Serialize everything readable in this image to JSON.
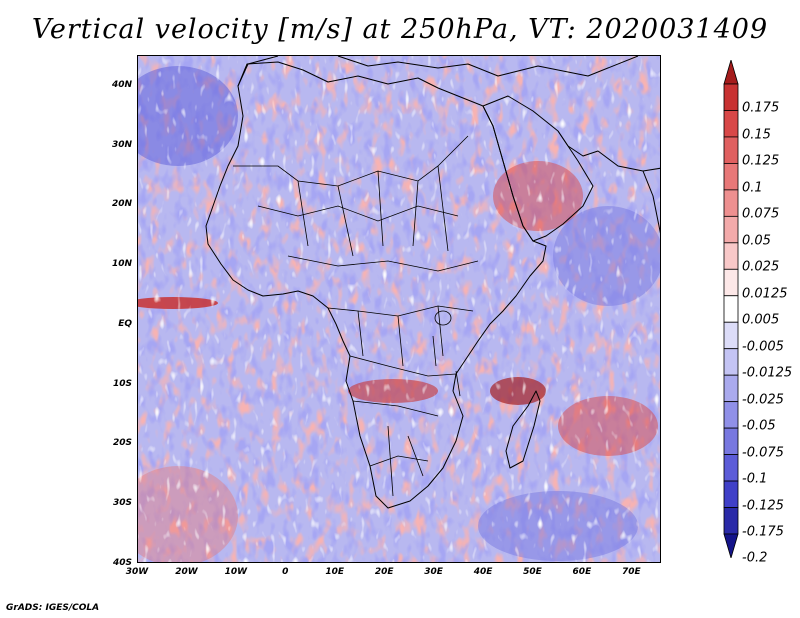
{
  "title": "Vertical velocity [m/s] at 250hPa, VT: 2020031409",
  "footer": "GrADS: IGES/COLA",
  "map": {
    "domain_lon_min": -30,
    "domain_lon_max": 76,
    "domain_lat_min": -40,
    "domain_lat_max": 45,
    "lat_ticks": [
      {
        "value": 40,
        "label": "40N"
      },
      {
        "value": 30,
        "label": "30N"
      },
      {
        "value": 20,
        "label": "20N"
      },
      {
        "value": 10,
        "label": "10N"
      },
      {
        "value": 0,
        "label": "EQ"
      },
      {
        "value": -10,
        "label": "10S"
      },
      {
        "value": -20,
        "label": "20S"
      },
      {
        "value": -30,
        "label": "30S"
      },
      {
        "value": -40,
        "label": "40S"
      }
    ],
    "lon_ticks": [
      {
        "value": -30,
        "label": "30W"
      },
      {
        "value": -20,
        "label": "20W"
      },
      {
        "value": -10,
        "label": "10W"
      },
      {
        "value": 0,
        "label": "0"
      },
      {
        "value": 10,
        "label": "10E"
      },
      {
        "value": 20,
        "label": "20E"
      },
      {
        "value": 30,
        "label": "30E"
      },
      {
        "value": 40,
        "label": "40E"
      },
      {
        "value": 50,
        "label": "50E"
      },
      {
        "value": 60,
        "label": "60E"
      },
      {
        "value": 70,
        "label": "70E"
      }
    ]
  },
  "colorbar": {
    "levels": [
      "0.175",
      "0.15",
      "0.125",
      "0.1",
      "0.075",
      "0.05",
      "0.025",
      "0.0125",
      "0.005",
      "-0.005",
      "-0.0125",
      "-0.025",
      "-0.05",
      "-0.075",
      "-0.1",
      "-0.125",
      "-0.175",
      "-0.2"
    ],
    "colors": [
      "#a51c1c",
      "#c83232",
      "#d84848",
      "#e06060",
      "#e87878",
      "#ee9090",
      "#f3aaaa",
      "#f8c8c8",
      "#fde8e8",
      "#ffffff",
      "#dcdcf8",
      "#c4c4f4",
      "#aaaaee",
      "#9090e8",
      "#7878e0",
      "#5c5cd8",
      "#4040c8",
      "#2a2aa8",
      "#14148a"
    ]
  }
}
